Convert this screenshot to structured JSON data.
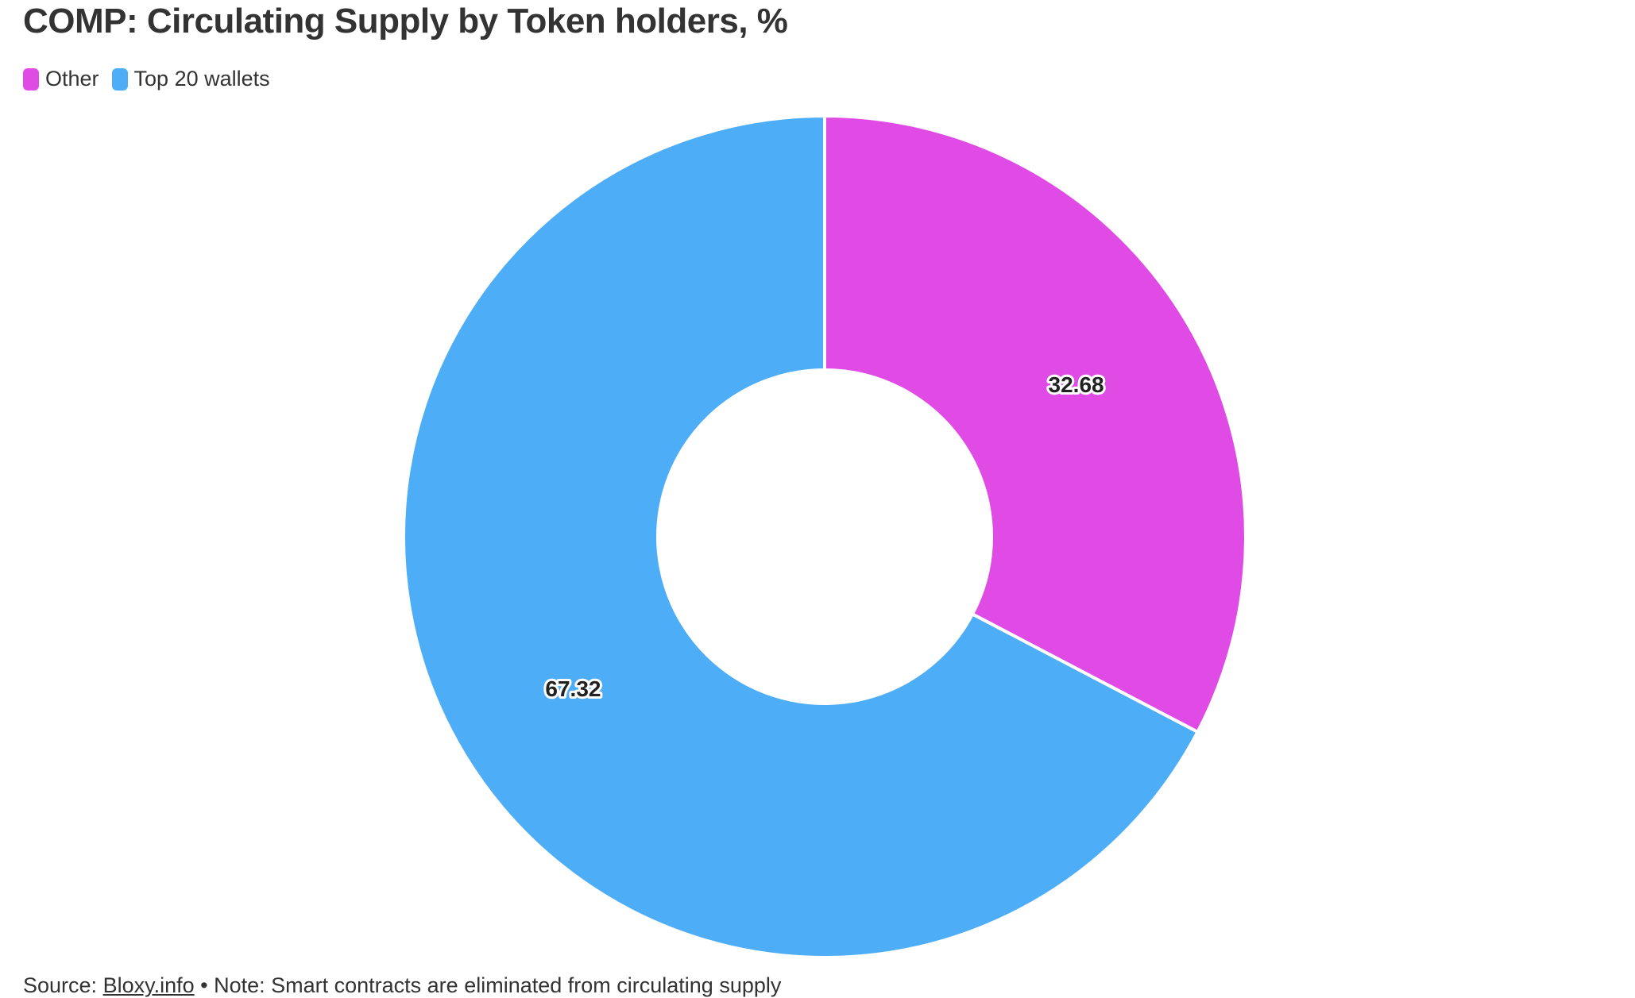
{
  "chart_data": {
    "type": "pie",
    "title": "COMP: Circulating Supply by Token holders, %",
    "categories": [
      "Other",
      "Top 20 wallets"
    ],
    "values": [
      32.68,
      67.32
    ],
    "data_labels": [
      "32.68",
      "67.32"
    ],
    "colors": [
      "#e04be5",
      "#4daef7"
    ],
    "donut": true,
    "legend_position": "top-left"
  },
  "legend": {
    "items": [
      {
        "label": "Other",
        "color": "#e04be5"
      },
      {
        "label": "Top 20 wallets",
        "color": "#4daef7"
      }
    ]
  },
  "footer": {
    "source_prefix": "Source: ",
    "source_link": "Bloxy.info",
    "note": " • Note: Smart contracts are eliminated from circulating supply"
  }
}
